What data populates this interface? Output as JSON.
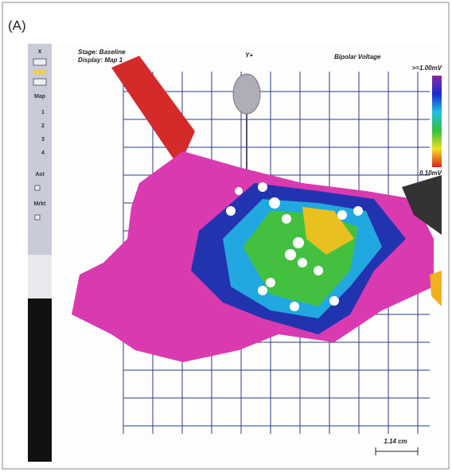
{
  "panel_label": "(A)",
  "header": {
    "stage": "Stage: Baseline",
    "display": "Display: Map 1",
    "view": "Y+",
    "map_type": "Bipolar Voltage"
  },
  "colorbar": {
    "max_label": ">=1.00mV",
    "min_label": "0.10mV"
  },
  "sidebar": {
    "close": "X",
    "map": "Map",
    "map_items": [
      "1",
      "2",
      "3",
      "4"
    ],
    "aoi": "AoI",
    "mrkt": "Mrkt"
  },
  "scale_bar": "1.14 cm"
}
